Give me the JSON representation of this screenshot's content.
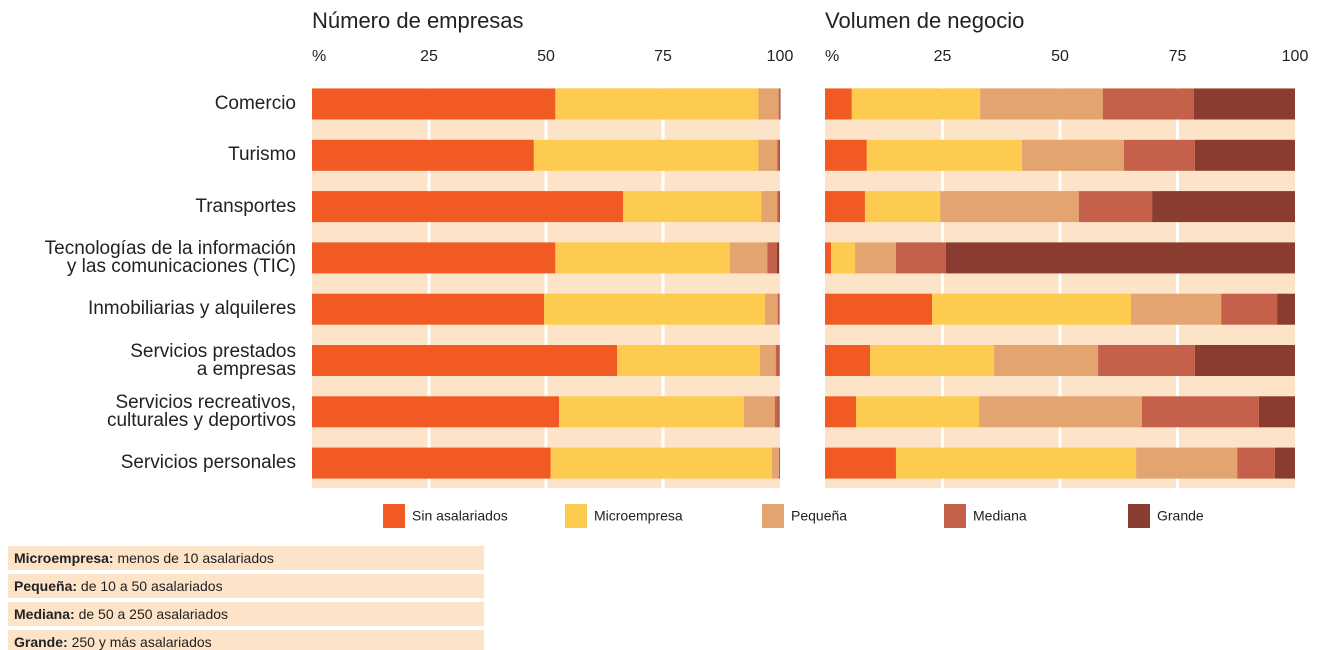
{
  "chart_data": [
    {
      "type": "stacked-bar",
      "orientation": "horizontal",
      "title": "Número de empresas",
      "categories": [
        "Comercio",
        "Turismo",
        "Transportes",
        "Tecnologías de la información\ny las comunicaciones (TIC)",
        "Inmobiliarias y alquileres",
        "Servicios prestados\na empresas",
        "Servicios recreativos,\nculturales y deportivos",
        "Servicios personales"
      ],
      "xlim": [
        0,
        100
      ],
      "xticks": [
        {
          "value": 0,
          "label": "%"
        },
        25,
        50,
        75,
        100
      ],
      "grid": true,
      "series": [
        {
          "name": "Sin asalariados",
          "color": "#f15a22",
          "values": [
            52,
            47.4,
            66.5,
            52,
            49.6,
            65.2,
            52.8,
            51
          ]
        },
        {
          "name": "Microempresa",
          "color": "#fdcb4f",
          "values": [
            43.4,
            48,
            29.5,
            37.3,
            47.2,
            30.5,
            39.5,
            47.3
          ]
        },
        {
          "name": "Pequeña",
          "color": "#e3a46f",
          "values": [
            4.3,
            4,
            3.4,
            8,
            2.7,
            3.4,
            6.6,
            1.5
          ]
        },
        {
          "name": "Mediana",
          "color": "#c5614a",
          "values": [
            0.3,
            0.5,
            0.5,
            2,
            0.3,
            0.6,
            0.8,
            0.1
          ]
        },
        {
          "name": "Grande",
          "color": "#8b3c30",
          "values": [
            0.1,
            0.1,
            0.1,
            0.5,
            0.1,
            0.2,
            0.2,
            0.1
          ]
        }
      ]
    },
    {
      "type": "stacked-bar",
      "orientation": "horizontal",
      "title": "Volumen de negocio",
      "xlim": [
        0,
        100
      ],
      "xticks": [
        {
          "value": 0,
          "label": "%"
        },
        25,
        50,
        75,
        100
      ],
      "grid": true,
      "series": [
        {
          "color": "#f15a22",
          "values": [
            5.7,
            8.9,
            8.5,
            1.3,
            22.8,
            9.6,
            6.6,
            15.1
          ]
        },
        {
          "color": "#fdcb4f",
          "values": [
            27.3,
            33,
            16,
            5.1,
            42.3,
            26.4,
            26.2,
            51.1
          ]
        },
        {
          "color": "#e3a46f",
          "values": [
            26.1,
            21.7,
            29.5,
            8.7,
            19.2,
            22.1,
            34.6,
            21.5
          ]
        },
        {
          "color": "#c5614a",
          "values": [
            19.4,
            15.1,
            15.6,
            10.6,
            11.9,
            20.6,
            24.9,
            8
          ]
        },
        {
          "color": "#8b3c30",
          "values": [
            21.5,
            21.3,
            30.4,
            74.3,
            3.8,
            21.3,
            7.7,
            4.3
          ]
        }
      ]
    }
  ],
  "notes": [
    {
      "term": "Microempresa:",
      "text": "menos de 10 asalariados"
    },
    {
      "term": "Pequeña:",
      "text": "de 10 a 50 asalariados"
    },
    {
      "term": "Mediana:",
      "text": "de 50 a 250 asalariados"
    },
    {
      "term": "Grande:",
      "text": "250 y más asalariados"
    }
  ]
}
